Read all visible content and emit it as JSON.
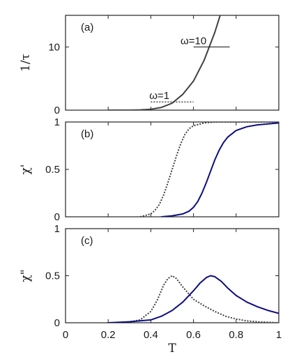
{
  "chart_data": [
    {
      "panel": "(a)",
      "type": "line",
      "ylabel": "1/τ",
      "xlim": [
        0,
        1
      ],
      "ylim": [
        0,
        15
      ],
      "xticks": [
        0.2,
        0.4,
        0.6,
        0.8
      ],
      "yticks": [
        0,
        10
      ],
      "xtick_labels_visible": false,
      "series": [
        {
          "color": "#404040",
          "style": "solid",
          "x": [
            0.2,
            0.25,
            0.3,
            0.35,
            0.4,
            0.45,
            0.5,
            0.55,
            0.6,
            0.65,
            0.7,
            0.725
          ],
          "values": [
            0.0,
            0.0,
            0.005,
            0.04,
            0.14,
            0.43,
            1.1,
            2.5,
            4.6,
            7.9,
            12.3,
            15.0
          ]
        }
      ],
      "annotations": [
        {
          "text": "ω=10",
          "x": 0.6,
          "y": 10,
          "line_x": [
            0.6,
            0.77
          ],
          "line_style": "solid"
        },
        {
          "text": "ω=1",
          "x": 0.44,
          "y": 1.3,
          "line_x": [
            0.4,
            0.6
          ],
          "line_style": "dotted"
        }
      ]
    },
    {
      "panel": "(b)",
      "type": "line",
      "ylabel": "χ'",
      "xlim": [
        0,
        1
      ],
      "ylim": [
        0,
        1
      ],
      "xticks": [
        0.2,
        0.4,
        0.6,
        0.8
      ],
      "yticks": [
        0,
        0.5,
        1
      ],
      "xtick_labels_visible": false,
      "series": [
        {
          "color": "#404040",
          "style": "dotted",
          "x": [
            0.35,
            0.4,
            0.42,
            0.44,
            0.46,
            0.48,
            0.5,
            0.52,
            0.54,
            0.56,
            0.58,
            0.6,
            0.65,
            0.7,
            0.8,
            0.9,
            1.0
          ],
          "values": [
            0.0,
            0.03,
            0.07,
            0.13,
            0.23,
            0.36,
            0.5,
            0.64,
            0.77,
            0.87,
            0.93,
            0.96,
            0.99,
            1.0,
            1.0,
            1.0,
            1.0
          ]
        },
        {
          "color": "#0d0d80",
          "style": "solid",
          "x": [
            0.45,
            0.5,
            0.55,
            0.58,
            0.6,
            0.62,
            0.64,
            0.66,
            0.68,
            0.7,
            0.72,
            0.74,
            0.76,
            0.8,
            0.85,
            0.9,
            0.95,
            1.0
          ],
          "values": [
            0.0,
            0.01,
            0.03,
            0.06,
            0.1,
            0.16,
            0.25,
            0.36,
            0.48,
            0.6,
            0.7,
            0.78,
            0.84,
            0.91,
            0.95,
            0.97,
            0.98,
            0.99
          ]
        }
      ]
    },
    {
      "panel": "(c)",
      "type": "line",
      "ylabel": "χ\"",
      "xlabel": "T",
      "xlim": [
        0,
        1
      ],
      "ylim": [
        0,
        1
      ],
      "xticks": [
        0,
        0.2,
        0.4,
        0.6,
        0.8,
        1
      ],
      "yticks": [
        0,
        0.5,
        1
      ],
      "xtick_labels_visible": true,
      "series": [
        {
          "color": "#404040",
          "style": "dotted",
          "x": [
            0.2,
            0.25,
            0.3,
            0.35,
            0.4,
            0.43,
            0.46,
            0.48,
            0.5,
            0.52,
            0.55,
            0.6,
            0.65,
            0.7,
            0.75,
            0.8,
            0.85,
            0.9,
            0.95,
            1.0
          ],
          "values": [
            0.0,
            0.0,
            0.01,
            0.03,
            0.12,
            0.24,
            0.4,
            0.47,
            0.5,
            0.47,
            0.38,
            0.25,
            0.18,
            0.12,
            0.07,
            0.04,
            0.02,
            0.01,
            0.005,
            0.0
          ]
        },
        {
          "color": "#0d0d80",
          "style": "solid",
          "x": [
            0.2,
            0.3,
            0.4,
            0.45,
            0.5,
            0.55,
            0.6,
            0.63,
            0.66,
            0.68,
            0.7,
            0.73,
            0.76,
            0.8,
            0.85,
            0.9,
            0.95,
            1.0
          ],
          "values": [
            0.0,
            0.01,
            0.03,
            0.07,
            0.13,
            0.22,
            0.34,
            0.42,
            0.48,
            0.5,
            0.49,
            0.44,
            0.37,
            0.29,
            0.22,
            0.17,
            0.13,
            0.1
          ]
        }
      ]
    }
  ]
}
